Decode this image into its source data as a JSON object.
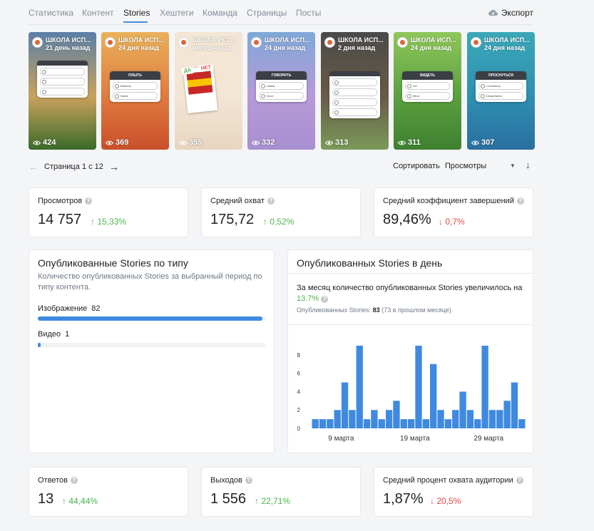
{
  "tabs": [
    {
      "label": "Статистика",
      "active": false
    },
    {
      "label": "Контент",
      "active": false
    },
    {
      "label": "Stories",
      "active": true
    },
    {
      "label": "Хештеги",
      "active": false
    },
    {
      "label": "Команда",
      "active": false
    },
    {
      "label": "Страницы",
      "active": false
    },
    {
      "label": "Посты",
      "active": false
    }
  ],
  "export_label": "Экспорт",
  "stories": [
    {
      "name": "ШКОЛА ИСП...",
      "date": "21 день назад",
      "views": "424",
      "bg": [
        "#5a7fa8",
        "#c9a25c",
        "#3a6a2a"
      ],
      "card_title": "",
      "card_opts": [
        "",
        "",
        ""
      ]
    },
    {
      "name": "ШКОЛА ИСП...",
      "date": "24 дня назад",
      "views": "369",
      "bg": [
        "#e9b25a",
        "#e07a3f",
        "#c9502a"
      ],
      "card_title": "ПЛЫТЬ",
      "card_opts": [
        "Bañarse",
        "Nadar"
      ]
    },
    {
      "name": "ШКОЛА ИСП...",
      "date": "месяц назад",
      "views": "355",
      "bg": [
        "#f3e6d4",
        "#f3e6d4",
        "#e8d5c0"
      ],
      "card_title": "",
      "card_opts": [],
      "quiz": [
        "ДА",
        "НЕТ"
      ]
    },
    {
      "name": "ШКОЛА ИСП...",
      "date": "24 дня назад",
      "views": "332",
      "bg": [
        "#7fa8d8",
        "#b79ad8",
        "#a78fd0"
      ],
      "card_title": "ГОВОРИТЬ",
      "card_opts": [
        "Hablar",
        "Decir"
      ]
    },
    {
      "name": "ШКОЛА ИСП...",
      "date": "2 дня назад",
      "views": "313",
      "bg": [
        "#4a4a4a",
        "#6a5a48",
        "#7a9a5a"
      ],
      "card_title": "",
      "card_opts": [
        "",
        "",
        "",
        ""
      ]
    },
    {
      "name": "ШКОЛА ИСП...",
      "date": "24 дня назад",
      "views": "311",
      "bg": [
        "#8fc75a",
        "#5aa040",
        "#3f8030"
      ],
      "card_title": "ВИДЕТЬ",
      "card_opts": [
        "Ver",
        "Mirar"
      ]
    },
    {
      "name": "ШКОЛА ИСП...",
      "date": "24 дня назад",
      "views": "307",
      "bg": [
        "#3aa8b8",
        "#2f8fb0",
        "#2a6fa0"
      ],
      "card_title": "ПРОСНУТЬСЯ",
      "card_opts": [
        "Levantarse",
        "Despertarse"
      ]
    }
  ],
  "pager": {
    "text": "Страница 1 с 12"
  },
  "sort": {
    "label": "Сортировать",
    "value": "Просмотры"
  },
  "stats_top": [
    {
      "label": "Просмотров",
      "value": "14 757",
      "change": "15,33%",
      "dir": "up"
    },
    {
      "label": "Средний охват",
      "value": "175,72",
      "change": "0,52%",
      "dir": "up"
    },
    {
      "label": "Средний коэффициент завершений",
      "value": "89,46%",
      "change": "0,7%",
      "dir": "down"
    }
  ],
  "by_type": {
    "title": "Опубликованные Stories по типу",
    "desc": "Количество опубликованных Stories за выбранный период по типу контента.",
    "items": [
      {
        "label": "Изображение",
        "count": "82",
        "fraction": 0.988
      },
      {
        "label": "Видео",
        "count": "1",
        "fraction": 0.012
      }
    ]
  },
  "per_day": {
    "title": "Опубликованных Stories в день",
    "desc": "За месяц количество опубликованных Stories увеличилось на",
    "pct": "13.7%",
    "sub_prefix": "Опубликованных Stories:",
    "sub_count": "83",
    "sub_suffix": "(73 в прошлом месяце)."
  },
  "chart_data": {
    "type": "bar",
    "values": [
      1,
      1,
      1,
      2,
      5,
      2,
      9,
      1,
      2,
      1,
      2,
      3,
      1,
      1,
      9,
      1,
      7,
      2,
      1,
      2,
      4,
      2,
      1,
      9,
      2,
      2,
      3,
      5,
      1
    ],
    "ylim": [
      0,
      9
    ],
    "yticks": [
      "0",
      "2",
      "4",
      "6",
      "8"
    ],
    "xticks": [
      {
        "index": 3.5,
        "label": "9 марта"
      },
      {
        "index": 13.5,
        "label": "19 марта"
      },
      {
        "index": 23.5,
        "label": "29 марта"
      }
    ],
    "color": "#3f8ae0"
  },
  "stats_bottom": [
    {
      "label": "Ответов",
      "value": "13",
      "change": "44,44%",
      "dir": "up"
    },
    {
      "label": "Выходов",
      "value": "1 556",
      "change": "22,71%",
      "dir": "up"
    },
    {
      "label": "Средний процент охвата аудитории",
      "value": "1,87%",
      "change": "20,5%",
      "dir": "down"
    }
  ],
  "colors": {
    "accent": "#3f8ae0",
    "up": "#4bb34b",
    "down": "#e64646"
  }
}
